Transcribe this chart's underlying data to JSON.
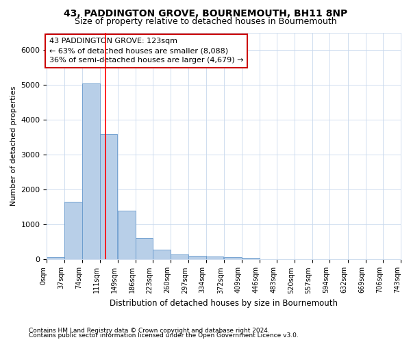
{
  "title": "43, PADDINGTON GROVE, BOURNEMOUTH, BH11 8NP",
  "subtitle": "Size of property relative to detached houses in Bournemouth",
  "xlabel": "Distribution of detached houses by size in Bournemouth",
  "ylabel": "Number of detached properties",
  "footnote1": "Contains HM Land Registry data © Crown copyright and database right 2024.",
  "footnote2": "Contains public sector information licensed under the Open Government Licence v3.0.",
  "bin_edges": [
    0,
    37,
    74,
    111,
    149,
    186,
    223,
    260,
    297,
    334,
    372,
    409,
    446,
    483,
    520,
    557,
    594,
    632,
    669,
    706,
    743
  ],
  "bar_heights": [
    75,
    1650,
    5050,
    3600,
    1400,
    620,
    290,
    145,
    115,
    80,
    65,
    55,
    0,
    0,
    0,
    0,
    0,
    0,
    0,
    0
  ],
  "bar_color": "#b8cfe8",
  "bar_edge_color": "#6699cc",
  "grid_color": "#c8d8ec",
  "red_line_x": 123,
  "ylim": [
    0,
    6500
  ],
  "xlim": [
    0,
    743
  ],
  "annotation_text": "43 PADDINGTON GROVE: 123sqm\n← 63% of detached houses are smaller (8,088)\n36% of semi-detached houses are larger (4,679) →",
  "annotation_box_color": "#ffffff",
  "annotation_box_edge": "#cc0000",
  "title_fontsize": 10,
  "subtitle_fontsize": 9,
  "tick_label_fontsize": 7,
  "ylabel_fontsize": 8,
  "xlabel_fontsize": 8.5,
  "annotation_fontsize": 8,
  "footnote_fontsize": 6.5
}
